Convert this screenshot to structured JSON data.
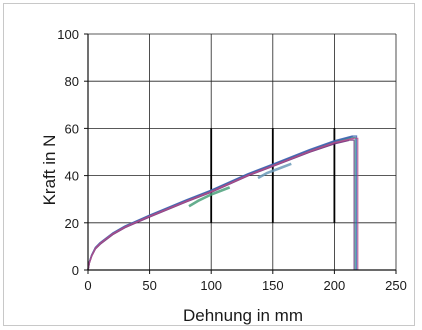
{
  "chart_data": {
    "type": "line",
    "title": "",
    "xlabel": "Dehnung in mm",
    "ylabel": "Kraft in N",
    "xlim": [
      0,
      250
    ],
    "ylim": [
      0,
      100
    ],
    "x_ticks": [
      0,
      50,
      100,
      150,
      200,
      250
    ],
    "y_ticks": [
      0,
      20,
      40,
      60,
      80,
      100
    ],
    "grid": true,
    "legend": "none",
    "series": [
      {
        "color": "#6a2f7a",
        "x": [
          0,
          1,
          3,
          6,
          10,
          20,
          30,
          50,
          80,
          100,
          130,
          150,
          180,
          200,
          212
        ],
        "y": [
          0,
          3,
          6,
          9,
          11,
          15,
          18,
          22.5,
          29,
          33,
          40,
          44,
          50,
          53.5,
          55
        ],
        "break_x": 216
      },
      {
        "color": "#2a8a8a",
        "x": [
          0,
          1,
          3,
          6,
          10,
          20,
          30,
          50,
          80,
          100,
          130,
          150,
          180,
          200,
          214
        ],
        "y": [
          0,
          3,
          6.2,
          9.3,
          11.4,
          15.4,
          18.4,
          23,
          29.4,
          33.5,
          40.5,
          44.5,
          50.6,
          54.3,
          56.2
        ],
        "break_x": 217
      },
      {
        "color": "#3a5fb0",
        "x": [
          0,
          1,
          3,
          6,
          10,
          20,
          30,
          50,
          80,
          100,
          130,
          150,
          180,
          200,
          215
        ],
        "y": [
          0,
          3.1,
          6.3,
          9.5,
          11.6,
          15.6,
          18.6,
          23.2,
          29.7,
          33.8,
          40.8,
          44.8,
          51,
          54.7,
          56.8
        ],
        "break_x": 218
      },
      {
        "color": "#b04a8a",
        "x": [
          0,
          1,
          3,
          6,
          10,
          20,
          30,
          50,
          80,
          100,
          130,
          150,
          180,
          200,
          216
        ],
        "y": [
          0,
          2.9,
          6,
          9.2,
          11.3,
          15.3,
          18.2,
          22.8,
          29.2,
          33.2,
          40.2,
          44.2,
          50.3,
          54,
          55.8
        ],
        "break_x": 219
      },
      {
        "color": "#4aa07a",
        "x": [
          82,
          90,
          100,
          115
        ],
        "y": [
          27,
          29.5,
          32,
          35
        ],
        "break_x": null
      },
      {
        "color": "#6a9ab8",
        "x": [
          138,
          145,
          155,
          165
        ],
        "y": [
          39,
          41,
          43,
          45
        ],
        "break_x": null
      }
    ],
    "markers": [
      {
        "x": 100,
        "y_from": 20,
        "y_to": 60
      },
      {
        "x": 150,
        "y_from": 20,
        "y_to": 60
      },
      {
        "x": 200,
        "y_from": 20,
        "y_to": 60
      }
    ]
  }
}
